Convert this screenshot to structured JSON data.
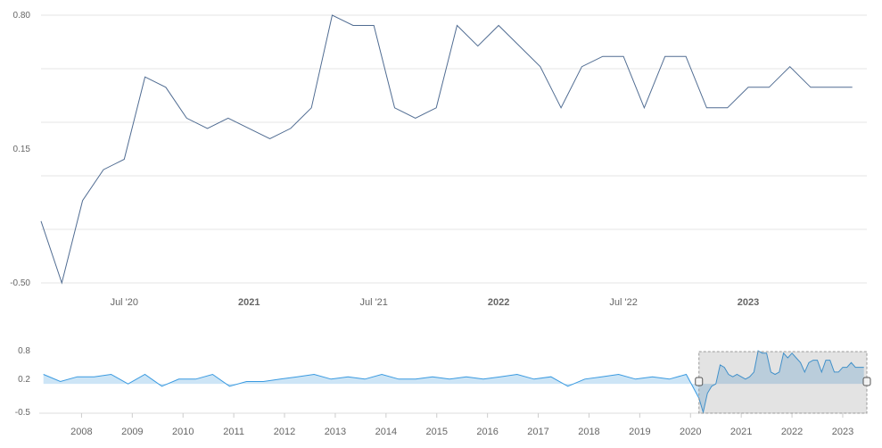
{
  "chart_data": [
    {
      "type": "line",
      "panel": "main",
      "x_labels": [
        "Jul '20",
        "2021",
        "Jul '21",
        "2022",
        "Jul '22",
        "2023"
      ],
      "x_labels_bold": [
        false,
        true,
        false,
        true,
        false,
        true
      ],
      "y_ticks": [
        "0.80",
        "0.15",
        "-0.50"
      ],
      "ylim": [
        -0.5,
        0.8
      ],
      "grid": true,
      "line_color": "#506c92",
      "series": [
        {
          "x": [
            "2020-03",
            "2020-04",
            "2020-05",
            "2020-06",
            "2020-07",
            "2020-08",
            "2020-09",
            "2020-10",
            "2020-11",
            "2020-12",
            "2021-01",
            "2021-02",
            "2021-03",
            "2021-04",
            "2021-05",
            "2021-06",
            "2021-07",
            "2021-08",
            "2021-09",
            "2021-10",
            "2021-11",
            "2021-12",
            "2022-01",
            "2022-02",
            "2022-03",
            "2022-04",
            "2022-05",
            "2022-06",
            "2022-07",
            "2022-08",
            "2022-09",
            "2022-10",
            "2022-11",
            "2022-12",
            "2023-01",
            "2023-02",
            "2023-03",
            "2023-04",
            "2023-05",
            "2023-06"
          ],
          "values": [
            -0.2,
            -0.5,
            -0.1,
            0.05,
            0.1,
            0.5,
            0.45,
            0.3,
            0.25,
            0.3,
            0.25,
            0.2,
            0.25,
            0.35,
            0.8,
            0.75,
            0.75,
            0.35,
            0.3,
            0.35,
            0.75,
            0.65,
            0.75,
            0.65,
            0.55,
            0.35,
            0.55,
            0.6,
            0.6,
            0.35,
            0.6,
            0.6,
            0.35,
            0.35,
            0.45,
            0.45,
            0.55,
            0.45,
            0.45,
            0.45
          ]
        }
      ]
    },
    {
      "type": "area",
      "panel": "navigator",
      "x_labels": [
        "2008",
        "2009",
        "2010",
        "2011",
        "2012",
        "2013",
        "2014",
        "2015",
        "2016",
        "2017",
        "2018",
        "2019",
        "2020",
        "2021",
        "2022",
        "2023"
      ],
      "y_ticks": [
        "0.8",
        "0.2",
        "-0.5"
      ],
      "ylim": [
        -0.5,
        0.8
      ],
      "line_color": "#3a9ae0",
      "fill_color": "#bcdcf3",
      "selected_range": [
        "2020-03",
        "2023-06"
      ],
      "series": [
        {
          "x": [
            "2007-04",
            "2007-08",
            "2007-12",
            "2008-04",
            "2008-08",
            "2008-12",
            "2009-04",
            "2009-08",
            "2009-12",
            "2010-04",
            "2010-08",
            "2010-12",
            "2011-04",
            "2011-08",
            "2011-12",
            "2012-04",
            "2012-08",
            "2012-12",
            "2013-04",
            "2013-08",
            "2013-12",
            "2014-04",
            "2014-08",
            "2014-12",
            "2015-04",
            "2015-08",
            "2015-12",
            "2016-04",
            "2016-08",
            "2016-12",
            "2017-04",
            "2017-08",
            "2017-12",
            "2018-04",
            "2018-08",
            "2018-12",
            "2019-04",
            "2019-08",
            "2019-12"
          ],
          "values": [
            0.3,
            0.15,
            0.25,
            0.25,
            0.3,
            0.1,
            0.3,
            0.05,
            0.2,
            0.2,
            0.3,
            0.05,
            0.15,
            0.15,
            0.2,
            0.25,
            0.3,
            0.2,
            0.25,
            0.2,
            0.3,
            0.2,
            0.2,
            0.25,
            0.2,
            0.25,
            0.2,
            0.25,
            0.3,
            0.2,
            0.25,
            0.05,
            0.2,
            0.25,
            0.3,
            0.2,
            0.25,
            0.2,
            0.3
          ]
        }
      ]
    }
  ]
}
